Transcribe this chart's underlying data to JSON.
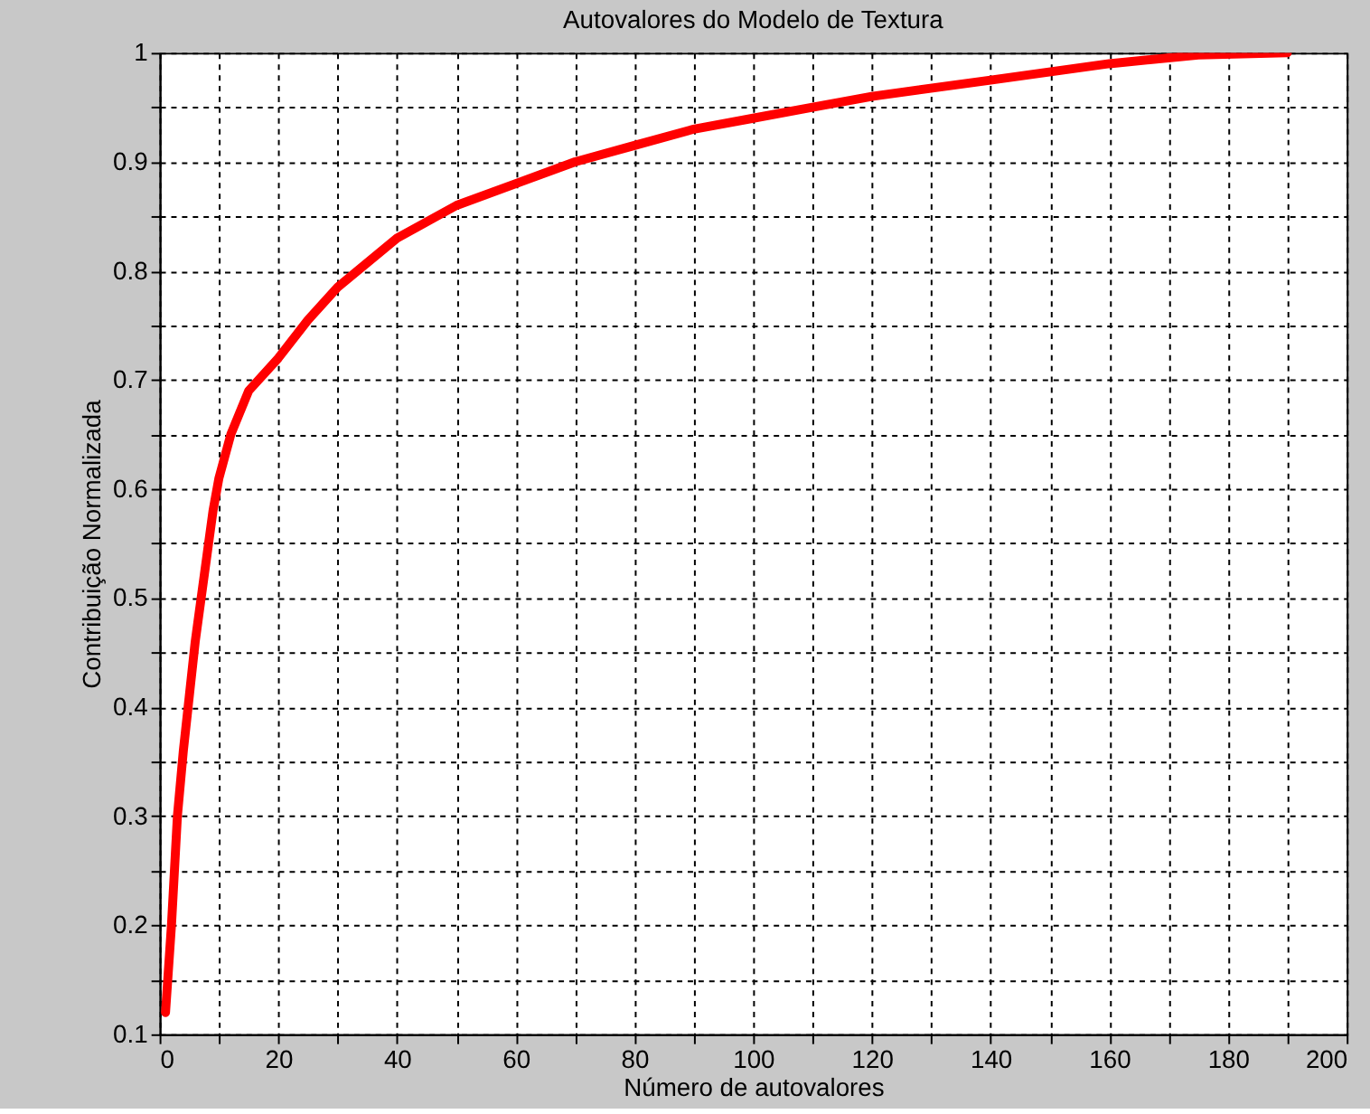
{
  "chart_data": {
    "type": "line",
    "title": "Autovalores do Modelo de Textura",
    "xlabel": "Número de autovalores",
    "ylabel": "Contribuição Normalizada",
    "x": [
      1,
      2,
      3,
      4,
      5,
      6,
      8,
      9,
      10,
      12,
      15,
      20,
      25,
      30,
      40,
      50,
      60,
      70,
      80,
      90,
      100,
      110,
      120,
      140,
      160,
      175,
      190
    ],
    "series": [
      {
        "color": "#ff0000",
        "values": [
          0.12,
          0.2,
          0.3,
          0.36,
          0.41,
          0.46,
          0.54,
          0.58,
          0.61,
          0.65,
          0.69,
          0.72,
          0.755,
          0.785,
          0.83,
          0.86,
          0.88,
          0.9,
          0.915,
          0.93,
          0.94,
          0.95,
          0.96,
          0.975,
          0.99,
          0.998,
          1.0
        ]
      }
    ],
    "xlim": [
      0,
      200
    ],
    "ylim": [
      0.1,
      1
    ],
    "xticks": [
      0,
      {
        "value": 10,
        "label": null
      },
      20,
      {
        "value": 30,
        "label": null
      },
      40,
      {
        "value": 50,
        "label": null
      },
      60,
      {
        "value": 70,
        "label": null
      },
      80,
      {
        "value": 90,
        "label": null
      },
      100,
      {
        "value": 110,
        "label": null
      },
      120,
      {
        "value": 130,
        "label": null
      },
      140,
      {
        "value": 150,
        "label": null
      },
      160,
      {
        "value": 170,
        "label": null
      },
      180,
      {
        "value": 190,
        "label": null
      },
      200
    ],
    "yticks": [
      0.1,
      {
        "value": 0.15,
        "label": null
      },
      0.2,
      {
        "value": 0.25,
        "label": null
      },
      0.3,
      {
        "value": 0.35,
        "label": null
      },
      0.4,
      {
        "value": 0.45,
        "label": null
      },
      0.5,
      {
        "value": 0.55,
        "label": null
      },
      0.6,
      {
        "value": 0.65,
        "label": null
      },
      0.7,
      {
        "value": 0.75,
        "label": null
      },
      0.8,
      {
        "value": 0.85,
        "label": null
      },
      0.9,
      {
        "value": 0.95,
        "label": null
      },
      1
    ],
    "grid": true,
    "line_style": "solid",
    "marker": "none"
  }
}
